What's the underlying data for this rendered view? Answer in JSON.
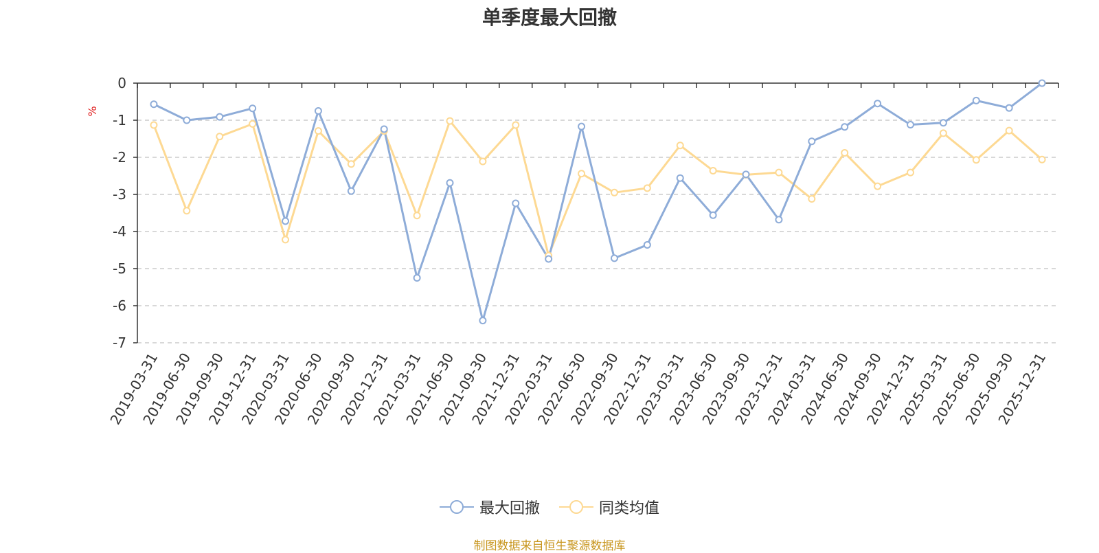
{
  "title": "单季度最大回撤",
  "source_note": "制图数据来自恒生聚源数据库",
  "colors": {
    "series_1": "#8EACD8",
    "series_2": "#FDD993",
    "unit_label": "#e02020"
  },
  "chart_data": {
    "type": "line",
    "title": "单季度最大回撤",
    "ylabel": "%",
    "ylim": [
      -7,
      0
    ],
    "yticks": [
      "0",
      "-1",
      "-2",
      "-3",
      "-4",
      "-5",
      "-6",
      "-7"
    ],
    "grid": true,
    "legend_position": "bottom",
    "categories": [
      "2019-03-31",
      "2019-06-30",
      "2019-09-30",
      "2019-12-31",
      "2020-03-31",
      "2020-06-30",
      "2020-09-30",
      "2020-12-31",
      "2021-03-31",
      "2021-06-30",
      "2021-09-30",
      "2021-12-31",
      "2022-03-31",
      "2022-06-30",
      "2022-09-30",
      "2022-12-31",
      "2023-03-31",
      "2023-06-30",
      "2023-09-30",
      "2023-12-31",
      "2024-03-31",
      "2024-06-30",
      "2024-09-30",
      "2024-12-31",
      "2025-03-31",
      "2025-06-30",
      "2025-09-30",
      "2025-12-31"
    ],
    "series": [
      {
        "name": "最大回撤",
        "values": [
          -0.57,
          -1.0,
          -0.91,
          -0.68,
          -3.72,
          -0.75,
          -2.91,
          -1.24,
          -5.25,
          -2.69,
          -6.4,
          -3.24,
          -4.74,
          -1.17,
          -4.72,
          -4.36,
          -2.56,
          -3.56,
          -2.46,
          -3.68,
          -1.57,
          -1.18,
          -0.55,
          -1.12,
          -1.07,
          -0.47,
          -0.67,
          0.0
        ]
      },
      {
        "name": "同类均值",
        "values": [
          -1.13,
          -3.44,
          -1.44,
          -1.1,
          -4.22,
          -1.29,
          -2.18,
          -1.29,
          -3.57,
          -1.02,
          -2.11,
          -1.13,
          -4.65,
          -2.44,
          -2.95,
          -2.83,
          -1.68,
          -2.36,
          -2.47,
          -2.41,
          -3.12,
          -1.88,
          -2.78,
          -2.41,
          -1.35,
          -2.07,
          -1.28,
          -2.06
        ]
      }
    ]
  }
}
